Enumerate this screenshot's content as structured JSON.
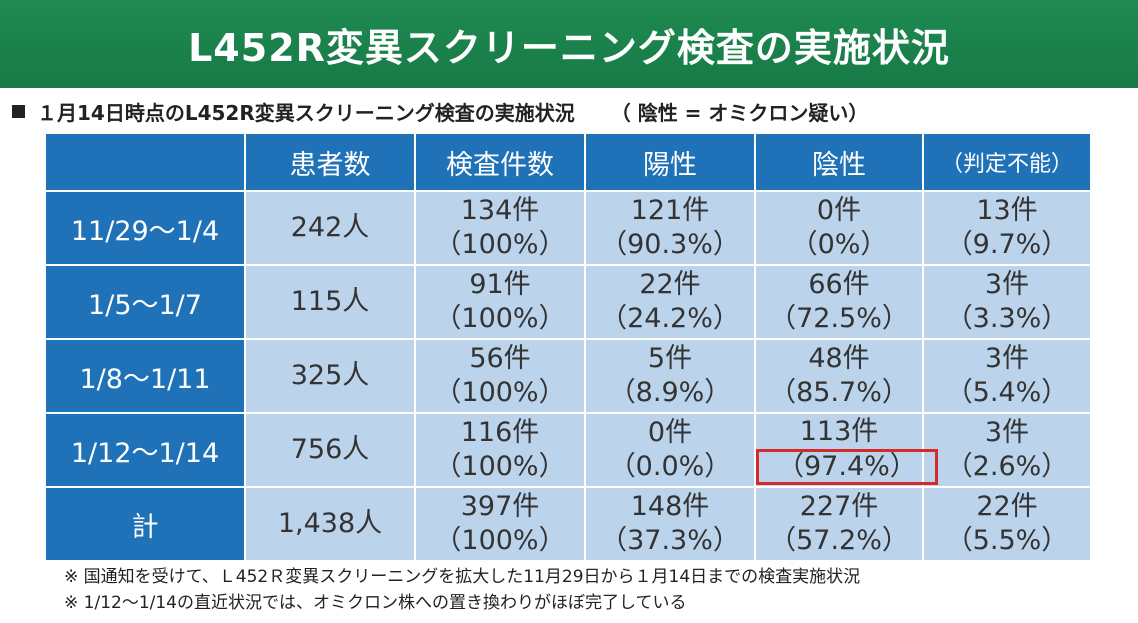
{
  "banner": {
    "title": "L452R変異スクリーニング検査の実施状況"
  },
  "subtitle": {
    "main": "１月14日時点のL452R変異スクリーニング検査の実施状況",
    "note": "（ 陰性 = オミクロン疑い）"
  },
  "table": {
    "headers": [
      "",
      "患者数",
      "検査件数",
      "陽性",
      "陰性",
      "（判定不能）"
    ],
    "rows": [
      {
        "period": "11/29～1/4",
        "patients": "242人",
        "tests": [
          "134件",
          "（100%）"
        ],
        "positive": [
          "121件",
          "（90.3%）"
        ],
        "negative": [
          "0件",
          "（0%）"
        ],
        "undetermined": [
          "13件",
          "（9.7%）"
        ]
      },
      {
        "period": "1/5～1/7",
        "patients": "115人",
        "tests": [
          "91件",
          "（100%）"
        ],
        "positive": [
          "22件",
          "（24.2%）"
        ],
        "negative": [
          "66件",
          "（72.5%）"
        ],
        "undetermined": [
          "3件",
          "（3.3%）"
        ]
      },
      {
        "period": "1/8～1/11",
        "patients": "325人",
        "tests": [
          "56件",
          "（100%）"
        ],
        "positive": [
          "5件",
          "（8.9%）"
        ],
        "negative": [
          "48件",
          "（85.7%）"
        ],
        "undetermined": [
          "3件",
          "（5.4%）"
        ]
      },
      {
        "period": "1/12～1/14",
        "patients": "756人",
        "tests": [
          "116件",
          "（100%）"
        ],
        "positive": [
          "0件",
          "（0.0%）"
        ],
        "negative": [
          "113件",
          "（97.4%）"
        ],
        "undetermined": [
          "3件",
          "（2.6%）"
        ]
      },
      {
        "period": "計",
        "patients": "1,438人",
        "tests": [
          "397件",
          "（100%）"
        ],
        "positive": [
          "148件",
          "（37.3%）"
        ],
        "negative": [
          "227件",
          "（57.2%）"
        ],
        "undetermined": [
          "22件",
          "（5.5%）"
        ]
      }
    ]
  },
  "notes": [
    "※ 国通知を受けて、Ｌ452Ｒ変異スクリーニングを拡大した11月29日から１月14日までの検査実施状況",
    "※ 1/12～1/14の直近状況では、オミクロン株への置き換わりがほぼ完了している"
  ],
  "colors": {
    "banner": "#1f8a52",
    "header_cell": "#1f71b8",
    "data_cell": "#bcd3ec",
    "highlight_box": "#d42a2a"
  }
}
